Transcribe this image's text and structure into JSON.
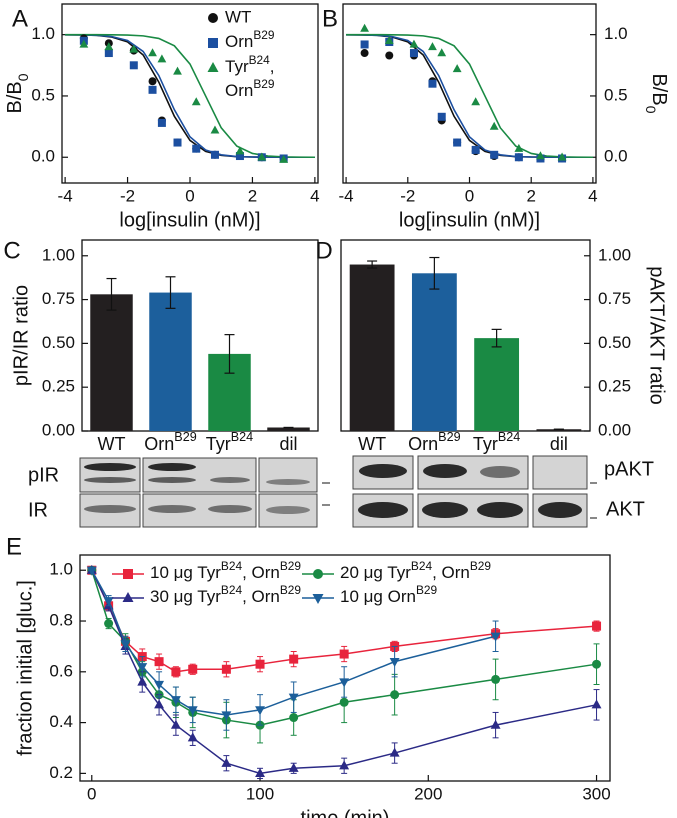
{
  "chart_data": [
    {
      "type": "scatter",
      "panel_label": "A",
      "xlabel": "log[insulin (nM)]",
      "ylabel": [
        "B/B",
        {
          "sub": "0"
        }
      ],
      "y_axis_side": "left",
      "legend": "top-right",
      "xlim": [
        -4.1,
        4.1
      ],
      "ylim": [
        -0.21,
        1.25
      ],
      "xticks": [
        -4,
        -2,
        0,
        2,
        4
      ],
      "yticks": [
        {
          "value": 0,
          "label": "0.0"
        },
        0.5,
        {
          "value": 1,
          "label": "1.0"
        }
      ],
      "x": [
        -3.4,
        -2.6,
        -1.8,
        -1.2,
        -0.9,
        -0.4,
        0.2,
        0.8,
        1.6,
        2.3,
        3.0
      ],
      "series": [
        {
          "name": "WT",
          "color": "#111111",
          "marker": "circle",
          "values": [
            0.97,
            0.93,
            0.87,
            0.62,
            0.3,
            0.12,
            0.07,
            0.02,
            0.01,
            0.0,
            -0.01
          ]
        },
        {
          "name": [
            "Orn",
            {
              "sup": "B29"
            }
          ],
          "color": "#1c4fa0",
          "marker": "square",
          "values": [
            0.95,
            0.85,
            0.75,
            0.55,
            0.28,
            0.12,
            0.07,
            0.02,
            0.01,
            0.0,
            -0.01
          ]
        },
        {
          "name": [
            [
              "Tyr",
              {
                "sup": "B24"
              },
              ","
            ],
            [
              "Orn",
              {
                "sup": "B29"
              }
            ]
          ],
          "color": "#1a8a44",
          "marker": "triangle-up",
          "values": [
            0.92,
            0.9,
            0.88,
            0.85,
            0.8,
            0.7,
            0.45,
            0.22,
            0.05,
            0.0,
            -0.02
          ]
        }
      ],
      "fit_x": [
        -4,
        -3.5,
        -3,
        -2.5,
        -2,
        -1.5,
        -1,
        -0.5,
        0,
        0.5,
        1,
        1.5,
        2,
        2.5,
        3,
        3.5,
        4
      ],
      "fit_curves": [
        {
          "color": "#111111",
          "values": [
            0.999,
            0.998,
            0.994,
            0.98,
            0.941,
            0.834,
            0.613,
            0.334,
            0.137,
            0.048,
            0.016,
            0.005,
            0.002,
            0.001,
            0,
            0,
            0
          ]
        },
        {
          "color": "#1c4fa0",
          "values": [
            0.999,
            0.998,
            0.995,
            0.984,
            0.952,
            0.863,
            0.667,
            0.387,
            0.166,
            0.059,
            0.02,
            0.006,
            0.002,
            0.001,
            0,
            0,
            0
          ]
        },
        {
          "color": "#1a8a44",
          "values": [
            1.0,
            1.0,
            1.0,
            0.999,
            0.997,
            0.99,
            0.969,
            0.909,
            0.76,
            0.5,
            0.24,
            0.091,
            0.031,
            0.01,
            0.003,
            0.001,
            0
          ]
        }
      ]
    },
    {
      "type": "scatter",
      "panel_label": "B",
      "xlabel": "log[insulin (nM)]",
      "ylabel": [
        "B/B",
        {
          "sub": "0"
        }
      ],
      "y_axis_side": "right",
      "xlim": [
        -4.1,
        4.1
      ],
      "ylim": [
        -0.21,
        1.25
      ],
      "xticks": [
        -4,
        -2,
        0,
        2,
        4
      ],
      "yticks": [
        {
          "value": 0,
          "label": "0.0"
        },
        0.5,
        {
          "value": 1,
          "label": "1.0"
        }
      ],
      "x": [
        -3.4,
        -2.6,
        -1.8,
        -1.2,
        -0.9,
        -0.4,
        0.2,
        0.8,
        1.6,
        2.3,
        3.0
      ],
      "series": [
        {
          "color": "#111111",
          "marker": "circle",
          "values": [
            0.85,
            0.83,
            0.83,
            0.62,
            0.3,
            0.12,
            0.05,
            0.01,
            0.0,
            -0.01,
            -0.01
          ]
        },
        {
          "color": "#1c4fa0",
          "marker": "square",
          "values": [
            0.92,
            0.94,
            0.85,
            0.6,
            0.33,
            0.12,
            0.06,
            0.02,
            0.0,
            -0.01,
            -0.01
          ]
        },
        {
          "color": "#1a8a44",
          "marker": "triangle-up",
          "values": [
            1.05,
            0.95,
            0.92,
            0.9,
            0.85,
            0.72,
            0.45,
            0.25,
            0.07,
            0.01,
            0.0
          ]
        }
      ],
      "fit_x": [
        -4,
        -3.5,
        -3,
        -2.5,
        -2,
        -1.5,
        -1,
        -0.5,
        0,
        0.5,
        1,
        1.5,
        2,
        2.5,
        3,
        3.5,
        4
      ],
      "fit_curves": [
        {
          "color": "#111111",
          "values": [
            0.999,
            0.998,
            0.994,
            0.98,
            0.941,
            0.834,
            0.613,
            0.334,
            0.137,
            0.048,
            0.016,
            0.005,
            0.002,
            0.001,
            0,
            0,
            0
          ]
        },
        {
          "color": "#1c4fa0",
          "values": [
            0.999,
            0.998,
            0.995,
            0.984,
            0.952,
            0.863,
            0.667,
            0.387,
            0.166,
            0.059,
            0.02,
            0.006,
            0.002,
            0.001,
            0,
            0,
            0
          ]
        },
        {
          "color": "#1a8a44",
          "values": [
            1.0,
            1.0,
            1.0,
            0.999,
            0.997,
            0.99,
            0.969,
            0.909,
            0.76,
            0.5,
            0.24,
            0.091,
            0.031,
            0.01,
            0.003,
            0.001,
            0
          ]
        }
      ]
    },
    {
      "type": "bar",
      "panel_label": "C",
      "ylabel": "pIR/IR ratio",
      "y_axis_side": "left",
      "categories": [
        "WT",
        [
          "Orn",
          {
            "sup": "B29"
          }
        ],
        [
          "Tyr",
          {
            "sup": "B24"
          }
        ],
        "dil"
      ],
      "values": [
        0.78,
        0.79,
        0.44,
        0.02
      ],
      "errors": [
        0.09,
        0.09,
        0.11,
        0.0
      ],
      "colors": [
        "#231f20",
        "#1c5f9c",
        "#1a8a44",
        "#231f20"
      ],
      "ylim": [
        0,
        1.09
      ],
      "yticks": [
        {
          "value": 0,
          "label": "0.00"
        },
        0.25,
        {
          "value": 0.5,
          "label": "0.50"
        },
        0.75,
        {
          "value": 1,
          "label": "1.00"
        }
      ],
      "blot_labels": [
        "pIR",
        "IR"
      ]
    },
    {
      "type": "bar",
      "panel_label": "D",
      "ylabel": "pAKT/AKT ratio",
      "y_axis_side": "right",
      "categories": [
        "WT",
        [
          "Orn",
          {
            "sup": "B29"
          }
        ],
        [
          "Tyr",
          {
            "sup": "B24"
          }
        ],
        "dil"
      ],
      "values": [
        0.95,
        0.9,
        0.53,
        0.01
      ],
      "errors": [
        0.02,
        0.09,
        0.05,
        0.0
      ],
      "colors": [
        "#231f20",
        "#1c5f9c",
        "#1a8a44",
        "#231f20"
      ],
      "ylim": [
        0,
        1.09
      ],
      "yticks": [
        {
          "value": 0,
          "label": "0.00"
        },
        0.25,
        {
          "value": 0.5,
          "label": "0.50"
        },
        0.75,
        {
          "value": 1,
          "label": "1.00"
        }
      ],
      "blot_labels": [
        "pAKT",
        "AKT"
      ]
    },
    {
      "type": "line",
      "panel_label": "E",
      "xlabel": "time (min)",
      "ylabel": "fraction initial [gluc.]",
      "y_axis_side": "left",
      "legend": "top",
      "xlim": [
        -7,
        308
      ],
      "ylim": [
        0.17,
        1.06
      ],
      "xticks": [
        0,
        100,
        200,
        300
      ],
      "yticks": [
        0.2,
        0.4,
        0.6,
        0.8,
        {
          "value": 1,
          "label": "1.0"
        }
      ],
      "x": [
        0,
        10,
        20,
        30,
        40,
        50,
        60,
        80,
        100,
        120,
        150,
        180,
        240,
        300
      ],
      "series": [
        {
          "name": [
            "10 μg Tyr",
            {
              "sup": "B24"
            },
            ", Orn",
            {
              "sup": "B29"
            }
          ],
          "color": "#e8243c",
          "marker": "square",
          "values": [
            1.0,
            0.86,
            0.72,
            0.66,
            0.64,
            0.6,
            0.61,
            0.61,
            0.63,
            0.65,
            0.67,
            0.7,
            0.75,
            0.78
          ],
          "errors": [
            0,
            0.02,
            0.02,
            0.03,
            0.03,
            0.02,
            0.02,
            0.03,
            0.03,
            0.03,
            0.03,
            0.02,
            0.02,
            0.02
          ]
        },
        {
          "name": [
            "20 μg Tyr",
            {
              "sup": "B24"
            },
            ", Orn",
            {
              "sup": "B29"
            }
          ],
          "color": "#1a8a44",
          "marker": "circle",
          "values": [
            1.0,
            0.79,
            0.72,
            0.6,
            0.51,
            0.48,
            0.44,
            0.41,
            0.39,
            0.42,
            0.48,
            0.51,
            0.57,
            0.63
          ],
          "errors": [
            0,
            0.02,
            0.03,
            0.04,
            0.05,
            0.06,
            0.06,
            0.07,
            0.07,
            0.07,
            0.08,
            0.08,
            0.08,
            0.08
          ]
        },
        {
          "name": [
            "30 μg Tyr",
            {
              "sup": "B24"
            },
            ", Orn",
            {
              "sup": "B29"
            }
          ],
          "color": "#2b2a86",
          "marker": "triangle-up",
          "values": [
            1.0,
            0.86,
            0.7,
            0.56,
            0.47,
            0.39,
            0.34,
            0.24,
            0.2,
            0.22,
            0.23,
            0.28,
            0.39,
            0.47
          ],
          "errors": [
            0,
            0.02,
            0.03,
            0.04,
            0.04,
            0.04,
            0.03,
            0.03,
            0.02,
            0.02,
            0.03,
            0.04,
            0.05,
            0.06
          ]
        },
        {
          "name": [
            "10 μg Orn",
            {
              "sup": "B29"
            }
          ],
          "color": "#1c5f9a",
          "marker": "triangle-down",
          "values": [
            1.0,
            0.88,
            0.71,
            0.62,
            0.55,
            0.49,
            0.45,
            0.43,
            0.45,
            0.5,
            0.56,
            0.64,
            0.74,
            null
          ],
          "errors": [
            0,
            0.02,
            0.03,
            0.04,
            0.05,
            0.05,
            0.05,
            0.06,
            0.06,
            0.06,
            0.06,
            0.06,
            0.06,
            null
          ]
        }
      ]
    }
  ]
}
